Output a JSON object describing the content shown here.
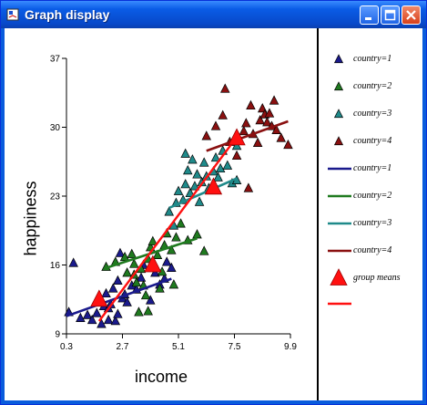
{
  "window": {
    "title": "Graph display"
  },
  "colors": {
    "c1": "#1a1a8c",
    "c2": "#1f7a1f",
    "c3": "#1f8a8a",
    "c4": "#8a1010",
    "means": "#ff1010"
  },
  "chart_data": {
    "type": "scatter",
    "xlabel": "income",
    "ylabel": "happiness",
    "x_ticks": [
      "0.3",
      "2.7",
      "5.1",
      "7.5",
      "9.9"
    ],
    "y_ticks": [
      "9",
      "16",
      "23",
      "30",
      "37"
    ],
    "xlim": [
      0.3,
      9.9
    ],
    "ylim": [
      9,
      37
    ],
    "series": [
      {
        "name": "country=1",
        "color": "#1a1a8c",
        "points": [
          [
            0.6,
            16.2
          ],
          [
            0.4,
            11.2
          ],
          [
            0.9,
            10.6
          ],
          [
            1.2,
            10.9
          ],
          [
            1.4,
            10.4
          ],
          [
            1.6,
            11.1
          ],
          [
            1.8,
            10.0
          ],
          [
            1.9,
            11.8
          ],
          [
            1.7,
            12.4
          ],
          [
            2.0,
            13.1
          ],
          [
            2.1,
            11.6
          ],
          [
            2.2,
            12.0
          ],
          [
            2.3,
            13.6
          ],
          [
            2.1,
            10.4
          ],
          [
            2.4,
            10.3
          ],
          [
            2.5,
            11.0
          ],
          [
            2.5,
            14.4
          ],
          [
            2.7,
            12.6
          ],
          [
            2.8,
            13.0
          ],
          [
            2.9,
            12.2
          ],
          [
            3.1,
            13.9
          ],
          [
            3.3,
            13.5
          ],
          [
            3.5,
            14.7
          ],
          [
            3.6,
            16.0
          ],
          [
            3.9,
            12.4
          ],
          [
            4.1,
            15.2
          ],
          [
            4.3,
            14.0
          ],
          [
            4.5,
            14.6
          ],
          [
            4.6,
            16.3
          ],
          [
            4.8,
            15.7
          ],
          [
            2.6,
            17.2
          ]
        ],
        "fit": [
          [
            0.3,
            10.8
          ],
          [
            4.8,
            14.6
          ]
        ]
      },
      {
        "name": "country=2",
        "color": "#1f7a1f",
        "points": [
          [
            2.0,
            15.8
          ],
          [
            2.4,
            16.3
          ],
          [
            2.8,
            16.8
          ],
          [
            2.9,
            15.2
          ],
          [
            3.1,
            17.1
          ],
          [
            3.2,
            16.1
          ],
          [
            3.2,
            15.0
          ],
          [
            3.3,
            14.2
          ],
          [
            3.5,
            15.6
          ],
          [
            3.6,
            13.9
          ],
          [
            3.7,
            12.9
          ],
          [
            3.8,
            16.6
          ],
          [
            3.9,
            17.8
          ],
          [
            4.0,
            18.4
          ],
          [
            4.2,
            17.0
          ],
          [
            4.4,
            15.3
          ],
          [
            4.5,
            18.0
          ],
          [
            4.6,
            19.2
          ],
          [
            4.8,
            17.5
          ],
          [
            4.9,
            14.0
          ],
          [
            5.0,
            18.8
          ],
          [
            5.2,
            20.2
          ],
          [
            5.5,
            18.5
          ],
          [
            5.9,
            19.1
          ],
          [
            3.4,
            11.2
          ],
          [
            3.8,
            11.3
          ],
          [
            4.3,
            13.6
          ],
          [
            6.2,
            17.4
          ]
        ],
        "fit": [
          [
            2.0,
            15.7
          ],
          [
            5.9,
            18.7
          ]
        ]
      },
      {
        "name": "country=3",
        "color": "#1f8a8a",
        "points": [
          [
            4.7,
            21.4
          ],
          [
            4.9,
            20.0
          ],
          [
            5.0,
            22.3
          ],
          [
            5.1,
            23.5
          ],
          [
            5.3,
            22.6
          ],
          [
            5.4,
            24.2
          ],
          [
            5.5,
            25.6
          ],
          [
            5.6,
            23.3
          ],
          [
            5.7,
            26.7
          ],
          [
            5.8,
            24.0
          ],
          [
            5.9,
            25.2
          ],
          [
            6.0,
            22.4
          ],
          [
            6.1,
            24.4
          ],
          [
            6.2,
            26.4
          ],
          [
            6.3,
            25.0
          ],
          [
            6.4,
            23.8
          ],
          [
            6.6,
            25.5
          ],
          [
            6.7,
            26.9
          ],
          [
            6.8,
            24.9
          ],
          [
            6.9,
            25.8
          ],
          [
            7.0,
            27.6
          ],
          [
            7.2,
            26.1
          ],
          [
            7.4,
            24.3
          ],
          [
            7.6,
            24.6
          ],
          [
            7.6,
            28.1
          ],
          [
            5.4,
            27.3
          ]
        ],
        "fit": [
          [
            4.7,
            21.8
          ],
          [
            7.6,
            24.8
          ]
        ]
      },
      {
        "name": "country=4",
        "color": "#8a1010",
        "points": [
          [
            6.3,
            29.1
          ],
          [
            6.7,
            30.1
          ],
          [
            7.0,
            31.2
          ],
          [
            7.1,
            33.9
          ],
          [
            7.3,
            28.5
          ],
          [
            7.6,
            27.1
          ],
          [
            7.9,
            29.6
          ],
          [
            8.0,
            30.4
          ],
          [
            8.2,
            32.2
          ],
          [
            8.3,
            29.3
          ],
          [
            8.5,
            28.4
          ],
          [
            8.6,
            30.7
          ],
          [
            8.7,
            31.9
          ],
          [
            8.8,
            31.3
          ],
          [
            8.9,
            30.5
          ],
          [
            9.0,
            31.4
          ],
          [
            9.1,
            30.1
          ],
          [
            9.2,
            32.7
          ],
          [
            9.3,
            29.7
          ],
          [
            9.5,
            28.9
          ],
          [
            9.8,
            28.2
          ],
          [
            8.1,
            23.8
          ]
        ],
        "fit": [
          [
            6.3,
            27.6
          ],
          [
            9.8,
            30.6
          ]
        ]
      }
    ],
    "group_means": {
      "name": "group means",
      "color": "#ff1010",
      "points": [
        [
          1.7,
          12.5
        ],
        [
          4.0,
          16.0
        ],
        [
          6.6,
          23.9
        ],
        [
          7.6,
          28.9
        ]
      ]
    },
    "means_line": [
      [
        1.7,
        10.3
      ],
      [
        7.6,
        29.0
      ]
    ],
    "legend": [
      "country=1",
      "country=2",
      "country=3",
      "country=4",
      "country=1",
      "country=2",
      "country=3",
      "country=4",
      "group means",
      ""
    ]
  }
}
